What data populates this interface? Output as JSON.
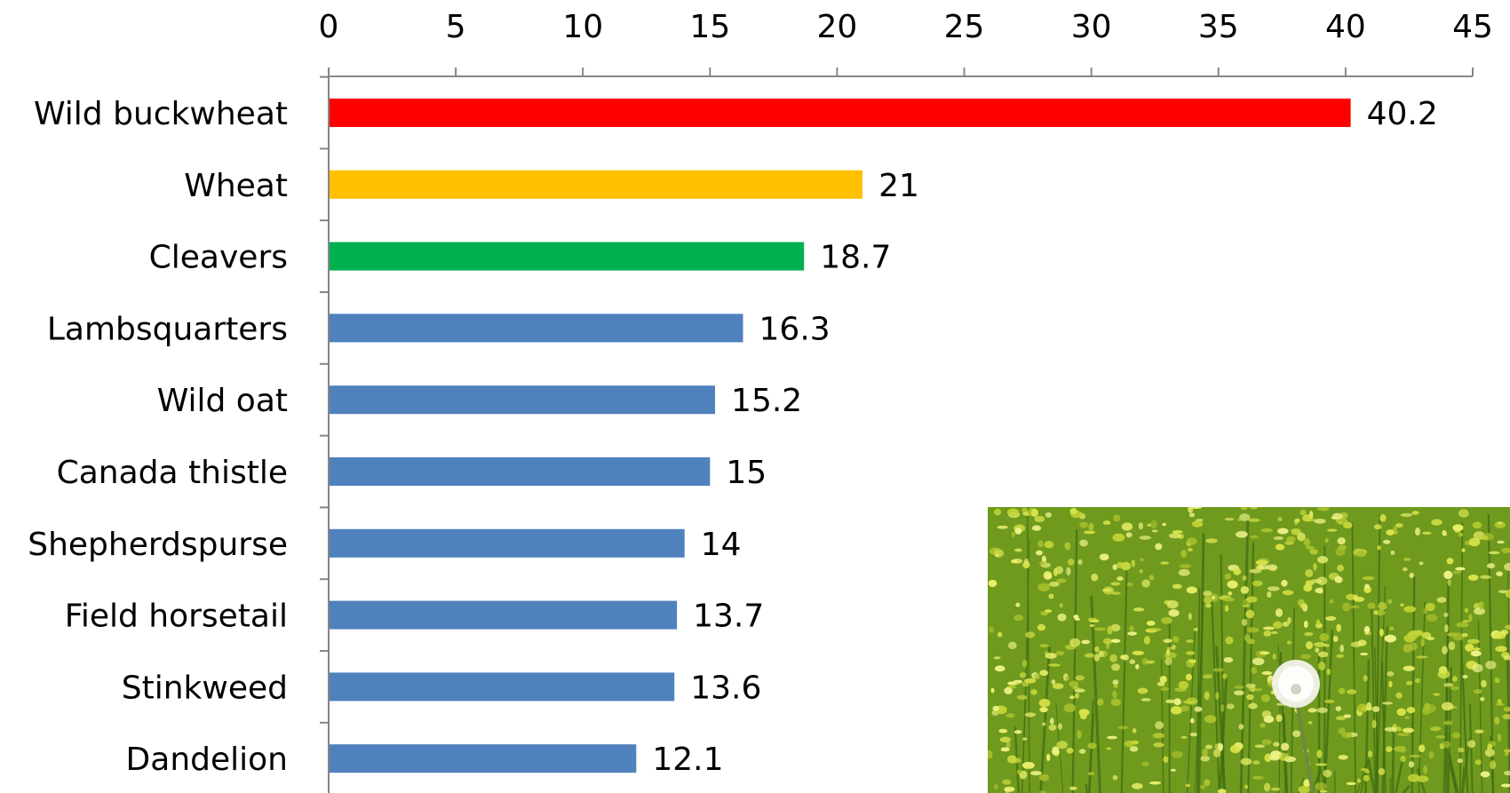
{
  "chart_data": {
    "type": "bar",
    "orientation": "horizontal",
    "title": "",
    "xlabel": "",
    "ylabel": "",
    "xlim": [
      0,
      45
    ],
    "x_ticks": [
      0,
      5,
      10,
      15,
      20,
      25,
      30,
      35,
      40,
      45
    ],
    "x_axis_position": "top",
    "grid": false,
    "legend": "none",
    "categories": [
      "Wild buckwheat",
      "Wheat",
      "Cleavers",
      "Lambsquarters",
      "Wild oat",
      "Canada thistle",
      "Shepherdspurse",
      "Field horsetail",
      "Stinkweed",
      "Dandelion"
    ],
    "values": [
      40.2,
      21,
      18.7,
      16.3,
      15.2,
      15,
      14,
      13.7,
      13.6,
      12.1
    ],
    "value_labels": [
      "40.2",
      "21",
      "18.7",
      "16.3",
      "15.2",
      "15",
      "14",
      "13.7",
      "13.6",
      "12.1"
    ],
    "colors": [
      "#ff0000",
      "#ffc000",
      "#00b050",
      "#4f81bd",
      "#4f81bd",
      "#4f81bd",
      "#4f81bd",
      "#4f81bd",
      "#4f81bd",
      "#4f81bd"
    ]
  },
  "photo": {
    "subject": "yellow-flowering-field-with-dandelion-seed-head",
    "colors": {
      "base": "#6f9a1e",
      "flower": "#d9e34a",
      "seedhead": "#f2f2ea"
    }
  }
}
